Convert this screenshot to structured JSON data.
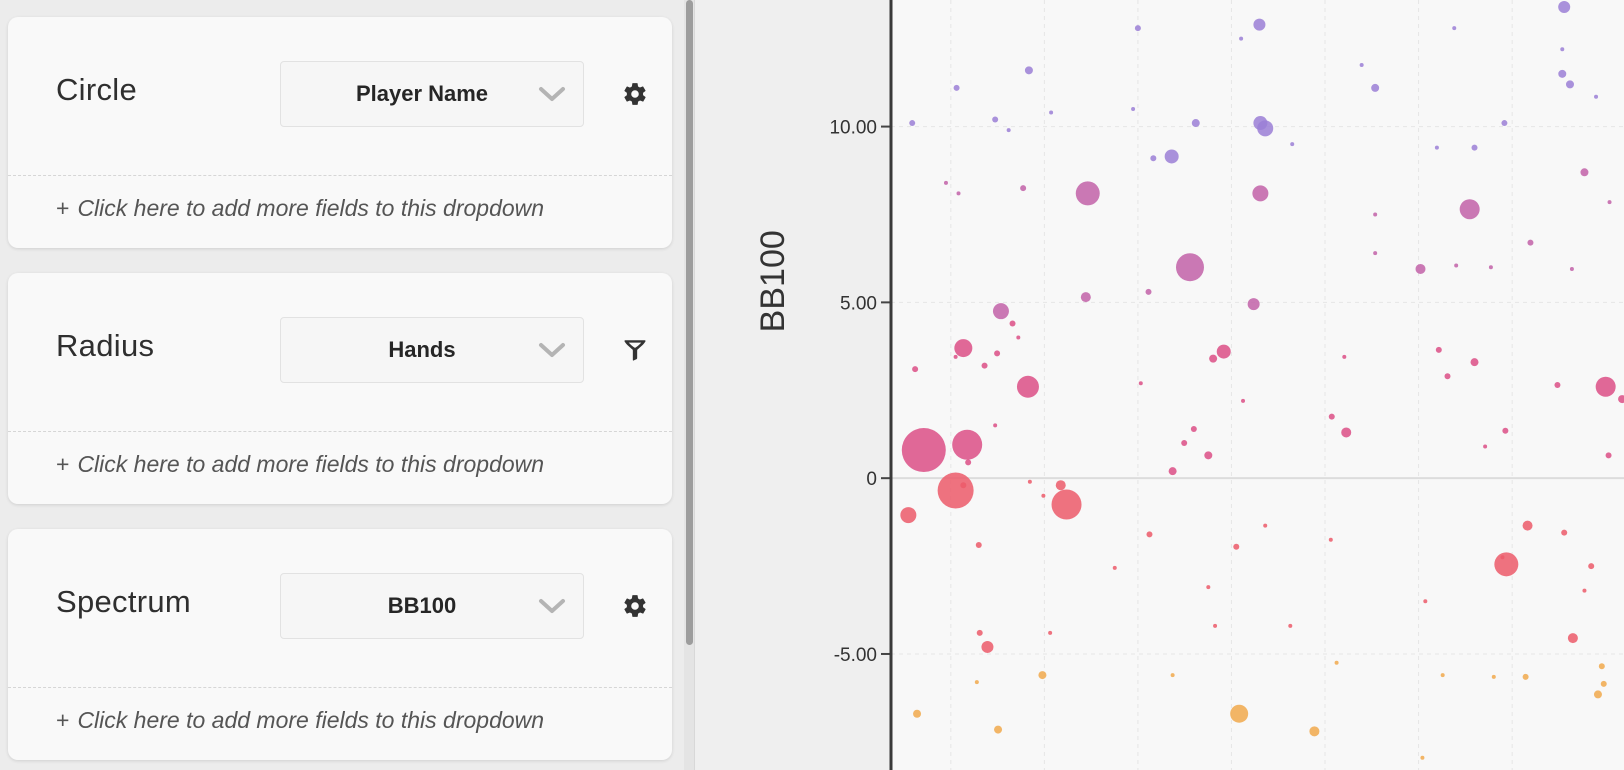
{
  "panels": [
    {
      "title": "Circle",
      "field": "Player Name",
      "icon": "gear-icon",
      "add_text": "Click here to add more fields to this dropdown"
    },
    {
      "title": "Radius",
      "field": "Hands",
      "icon": "filter-icon",
      "add_text": "Click here to add more fields to this dropdown"
    },
    {
      "title": "Spectrum",
      "field": "BB100",
      "icon": "gear-icon",
      "add_text": "Click here to add more fields to this dropdown"
    }
  ],
  "add_prefix": "+",
  "colors": {
    "purple": "#9b7fd6",
    "magenta": "#c261a8",
    "pink": "#dc4f86",
    "red": "#ec5a6a",
    "orange": "#f1a94c"
  },
  "chart_data": {
    "type": "scatter",
    "ylabel": "BB100",
    "y_ticks": [
      "10.00",
      "5.00",
      "0",
      "-5.00"
    ],
    "y_tick_values": [
      10,
      5,
      0,
      -5
    ],
    "ylim": [
      -8.3,
      13.6
    ],
    "grid": true,
    "series": [
      {
        "points": [
          {
            "x": 0.22,
            "y": 10.1,
            "r": 3
          },
          {
            "x": 0.68,
            "y": 11.1,
            "r": 3
          },
          {
            "x": 1.08,
            "y": 10.2,
            "r": 3
          },
          {
            "x": 1.22,
            "y": 9.9,
            "r": 2
          },
          {
            "x": 1.43,
            "y": 11.6,
            "r": 4
          },
          {
            "x": 1.66,
            "y": 10.4,
            "r": 2
          },
          {
            "x": 2.56,
            "y": 12.8,
            "r": 3
          },
          {
            "x": 2.51,
            "y": 10.5,
            "r": 2
          },
          {
            "x": 2.72,
            "y": 9.1,
            "r": 3
          },
          {
            "x": 2.91,
            "y": 9.15,
            "r": 7
          },
          {
            "x": 3.16,
            "y": 10.1,
            "r": 4
          },
          {
            "x": 3.63,
            "y": 12.5,
            "r": 2
          },
          {
            "x": 3.82,
            "y": 12.9,
            "r": 6
          },
          {
            "x": 3.83,
            "y": 10.1,
            "r": 7
          },
          {
            "x": 3.88,
            "y": 9.95,
            "r": 8
          },
          {
            "x": 4.16,
            "y": 9.5,
            "r": 2
          },
          {
            "x": 4.88,
            "y": 11.75,
            "r": 2
          },
          {
            "x": 5.02,
            "y": 11.1,
            "r": 4
          },
          {
            "x": 5.66,
            "y": 9.4,
            "r": 2
          },
          {
            "x": 5.84,
            "y": 12.8,
            "r": 2
          },
          {
            "x": 6.05,
            "y": 9.4,
            "r": 3
          },
          {
            "x": 6.36,
            "y": 10.1,
            "r": 3
          },
          {
            "x": 6.98,
            "y": 13.4,
            "r": 6
          },
          {
            "x": 6.96,
            "y": 12.2,
            "r": 2
          },
          {
            "x": 6.96,
            "y": 11.5,
            "r": 4
          },
          {
            "x": 7.04,
            "y": 11.2,
            "r": 4
          },
          {
            "x": 7.31,
            "y": 10.85,
            "r": 2
          }
        ]
      },
      {
        "points": [
          {
            "x": 0.57,
            "y": 8.4,
            "r": 2
          },
          {
            "x": 0.7,
            "y": 8.1,
            "r": 2
          },
          {
            "x": 1.37,
            "y": 8.25,
            "r": 3
          },
          {
            "x": 2.04,
            "y": 8.1,
            "r": 12
          },
          {
            "x": 3.83,
            "y": 8.1,
            "r": 8
          },
          {
            "x": 5.02,
            "y": 7.5,
            "r": 2
          },
          {
            "x": 6.0,
            "y": 7.65,
            "r": 10
          },
          {
            "x": 5.02,
            "y": 6.4,
            "r": 2
          },
          {
            "x": 6.63,
            "y": 6.7,
            "r": 3
          },
          {
            "x": 7.19,
            "y": 8.7,
            "r": 4
          },
          {
            "x": 7.45,
            "y": 7.85,
            "r": 2
          },
          {
            "x": 3.1,
            "y": 6.0,
            "r": 14
          },
          {
            "x": 1.14,
            "y": 4.75,
            "r": 8
          },
          {
            "x": 2.02,
            "y": 5.15,
            "r": 5
          },
          {
            "x": 2.67,
            "y": 5.3,
            "r": 3
          },
          {
            "x": 3.76,
            "y": 4.95,
            "r": 6
          },
          {
            "x": 5.49,
            "y": 5.95,
            "r": 5
          },
          {
            "x": 5.86,
            "y": 6.05,
            "r": 2
          },
          {
            "x": 6.22,
            "y": 6.0,
            "r": 2
          },
          {
            "x": 7.06,
            "y": 5.95,
            "r": 2
          }
        ]
      },
      {
        "points": [
          {
            "x": 0.25,
            "y": 3.1,
            "r": 3
          },
          {
            "x": 0.75,
            "y": 3.7,
            "r": 9
          },
          {
            "x": 0.97,
            "y": 3.2,
            "r": 3
          },
          {
            "x": 1.1,
            "y": 3.55,
            "r": 3
          },
          {
            "x": 1.32,
            "y": 4.0,
            "r": 2
          },
          {
            "x": 1.26,
            "y": 4.4,
            "r": 3
          },
          {
            "x": 1.42,
            "y": 2.6,
            "r": 11
          },
          {
            "x": 0.67,
            "y": 3.45,
            "r": 2
          },
          {
            "x": 0.34,
            "y": 0.8,
            "r": 22
          },
          {
            "x": 0.79,
            "y": 0.95,
            "r": 15
          },
          {
            "x": 1.08,
            "y": 1.5,
            "r": 2
          },
          {
            "x": 0.8,
            "y": 0.45,
            "r": 3
          },
          {
            "x": 2.59,
            "y": 2.7,
            "r": 2
          },
          {
            "x": 3.45,
            "y": 3.6,
            "r": 7
          },
          {
            "x": 3.34,
            "y": 3.4,
            "r": 4
          },
          {
            "x": 3.14,
            "y": 1.4,
            "r": 3
          },
          {
            "x": 3.04,
            "y": 1.0,
            "r": 3
          },
          {
            "x": 2.92,
            "y": 0.2,
            "r": 4
          },
          {
            "x": 3.29,
            "y": 0.65,
            "r": 4
          },
          {
            "x": 3.65,
            "y": 2.2,
            "r": 2
          },
          {
            "x": 4.72,
            "y": 1.3,
            "r": 5
          },
          {
            "x": 4.57,
            "y": 1.75,
            "r": 3
          },
          {
            "x": 4.7,
            "y": 3.45,
            "r": 2
          },
          {
            "x": 5.77,
            "y": 2.9,
            "r": 3
          },
          {
            "x": 6.05,
            "y": 3.3,
            "r": 4
          },
          {
            "x": 5.68,
            "y": 3.65,
            "r": 3
          },
          {
            "x": 6.37,
            "y": 1.35,
            "r": 3
          },
          {
            "x": 6.16,
            "y": 0.9,
            "r": 2
          },
          {
            "x": 6.91,
            "y": 2.65,
            "r": 3
          },
          {
            "x": 7.41,
            "y": 2.6,
            "r": 10
          },
          {
            "x": 7.58,
            "y": 2.25,
            "r": 4
          },
          {
            "x": 7.65,
            "y": 2.85,
            "r": 4
          },
          {
            "x": 7.44,
            "y": 0.65,
            "r": 3
          }
        ]
      },
      {
        "points": [
          {
            "x": 0.18,
            "y": -1.05,
            "r": 8
          },
          {
            "x": 0.67,
            "y": -0.35,
            "r": 18
          },
          {
            "x": 0.75,
            "y": -0.2,
            "r": 3
          },
          {
            "x": 1.82,
            "y": -0.75,
            "r": 15
          },
          {
            "x": 1.76,
            "y": -0.2,
            "r": 5
          },
          {
            "x": 1.44,
            "y": -0.1,
            "r": 2
          },
          {
            "x": 1.58,
            "y": -0.5,
            "r": 2
          },
          {
            "x": 2.68,
            "y": -1.6,
            "r": 3
          },
          {
            "x": 2.32,
            "y": -2.55,
            "r": 2
          },
          {
            "x": 3.58,
            "y": -1.95,
            "r": 3
          },
          {
            "x": 3.88,
            "y": -1.35,
            "r": 2
          },
          {
            "x": 4.56,
            "y": -1.75,
            "r": 2
          },
          {
            "x": 6.6,
            "y": -1.35,
            "r": 5
          },
          {
            "x": 6.98,
            "y": -1.55,
            "r": 3
          },
          {
            "x": 7.26,
            "y": -2.5,
            "r": 3
          },
          {
            "x": 6.38,
            "y": -2.45,
            "r": 12
          },
          {
            "x": 6.34,
            "y": -2.25,
            "r": 2
          },
          {
            "x": 7.07,
            "y": -4.55,
            "r": 5
          },
          {
            "x": 1.0,
            "y": -4.8,
            "r": 6
          },
          {
            "x": 0.92,
            "y": -4.4,
            "r": 3
          },
          {
            "x": 0.91,
            "y": -1.9,
            "r": 3
          },
          {
            "x": 1.65,
            "y": -4.4,
            "r": 2
          },
          {
            "x": 3.29,
            "y": -3.1,
            "r": 2
          },
          {
            "x": 3.36,
            "y": -4.2,
            "r": 2
          },
          {
            "x": 4.14,
            "y": -4.2,
            "r": 2
          },
          {
            "x": 5.54,
            "y": -3.5,
            "r": 2
          },
          {
            "x": 7.19,
            "y": -3.2,
            "r": 2
          }
        ]
      },
      {
        "points": [
          {
            "x": 0.27,
            "y": -6.7,
            "r": 4
          },
          {
            "x": 1.57,
            "y": -5.6,
            "r": 4
          },
          {
            "x": 0.89,
            "y": -5.8,
            "r": 2
          },
          {
            "x": 1.11,
            "y": -7.15,
            "r": 4
          },
          {
            "x": 2.92,
            "y": -5.6,
            "r": 2
          },
          {
            "x": 3.61,
            "y": -6.7,
            "r": 9
          },
          {
            "x": 4.39,
            "y": -7.2,
            "r": 5
          },
          {
            "x": 4.62,
            "y": -5.25,
            "r": 2
          },
          {
            "x": 5.72,
            "y": -5.6,
            "r": 2
          },
          {
            "x": 5.51,
            "y": -7.95,
            "r": 2
          },
          {
            "x": 6.25,
            "y": -5.65,
            "r": 2
          },
          {
            "x": 6.58,
            "y": -5.65,
            "r": 3
          },
          {
            "x": 7.39,
            "y": -5.85,
            "r": 3
          },
          {
            "x": 7.33,
            "y": -6.15,
            "r": 4
          },
          {
            "x": 7.37,
            "y": -5.35,
            "r": 3
          }
        ]
      }
    ]
  }
}
